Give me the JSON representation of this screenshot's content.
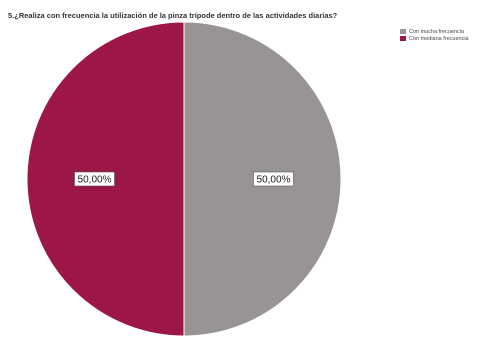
{
  "chart_data": {
    "type": "pie",
    "title": "5.¿Realiza con frecuencia la utilización de la pinza trípode dentro de las actividades diarias?",
    "labels": [
      "Con mucha frecuencia",
      "Con mediana frecuencia"
    ],
    "values": [
      50.0,
      50.0
    ],
    "data_labels": [
      "50,00%",
      "50,00%"
    ],
    "colors": [
      "#999494",
      "#9c1648"
    ],
    "legend_position": "top-right"
  }
}
